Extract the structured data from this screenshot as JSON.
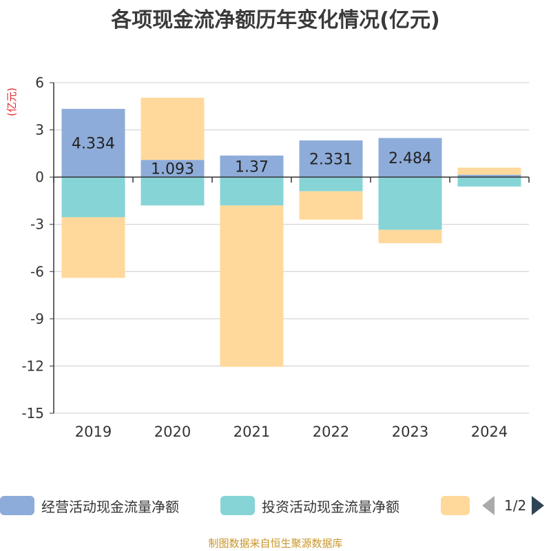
{
  "title": "各项现金流净额历年变化情况(亿元)",
  "source": "制图数据来自恒生聚源数据库",
  "legend_pager": "1/2",
  "chart_data": {
    "type": "bar",
    "stacked": true,
    "categories": [
      "2019",
      "2020",
      "2021",
      "2022",
      "2023",
      "2024"
    ],
    "ylabel": "(亿元)",
    "ylim": [
      -15,
      6
    ],
    "yticks": [
      6,
      3,
      0,
      -3,
      -6,
      -9,
      -12,
      -15
    ],
    "grid": true,
    "legend_position": "bottom",
    "series": [
      {
        "name": "经营活动现金流量净额",
        "color": "#8eacd9",
        "values": [
          4.334,
          1.093,
          1.37,
          2.331,
          2.484,
          0.15
        ],
        "labels": [
          "4.334",
          "1.093",
          "1.37",
          "2.331",
          "2.484",
          ""
        ]
      },
      {
        "name": "投资活动现金流量净额",
        "color": "#86d4d6",
        "values": [
          -2.55,
          -1.8,
          -1.8,
          -0.9,
          -3.35,
          -0.6
        ]
      },
      {
        "name": "",
        "color": "#ffd99b",
        "values": [
          -3.85,
          3.95,
          -10.25,
          -1.8,
          -0.85,
          0.45
        ]
      }
    ]
  }
}
